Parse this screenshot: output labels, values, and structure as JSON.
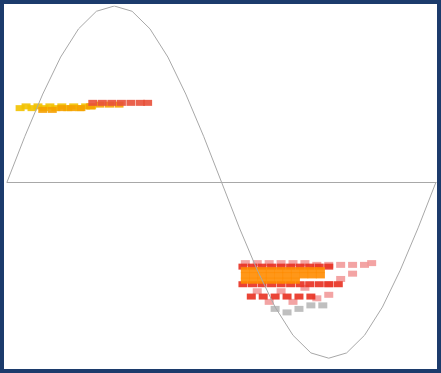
{
  "chart_data": {
    "type": "scatter",
    "xlim": [
      0,
      360
    ],
    "ylim": [
      -1.05,
      1.0
    ],
    "tick_labels": false,
    "grid": false,
    "series": [
      {
        "type": "line",
        "color": "#a8a8a8",
        "marker": "none",
        "line_style": "solid",
        "x": [
          0,
          15,
          30,
          45,
          60,
          75,
          90,
          105,
          120,
          135,
          150,
          165,
          180,
          195,
          210,
          225,
          240,
          255,
          270,
          285,
          300,
          315,
          330,
          345,
          360
        ],
        "values": [
          0,
          0.26,
          0.5,
          0.71,
          0.87,
          0.97,
          1,
          0.97,
          0.87,
          0.71,
          0.5,
          0.26,
          0,
          -0.26,
          -0.5,
          -0.71,
          -0.87,
          -0.97,
          -1,
          -0.97,
          -0.87,
          -0.71,
          -0.5,
          -0.26,
          0
        ]
      },
      {
        "type": "scatter",
        "color": "#f2c200",
        "marker": "square",
        "x": [
          11,
          16,
          21,
          26,
          31,
          36,
          41,
          46,
          51,
          56,
          61,
          66,
          71
        ],
        "values": [
          0.42,
          0.43,
          0.42,
          0.43,
          0.42,
          0.43,
          0.42,
          0.43,
          0.42,
          0.43,
          0.42,
          0.43,
          0.43
        ]
      },
      {
        "type": "scatter",
        "color": "#f5a000",
        "marker": "square",
        "x": [
          30,
          38,
          46,
          54,
          62,
          70,
          78,
          86,
          94
        ],
        "values": [
          0.41,
          0.41,
          0.42,
          0.42,
          0.42,
          0.43,
          0.44,
          0.44,
          0.44
        ]
      },
      {
        "type": "scatter",
        "color": "#e8503a",
        "marker": "square",
        "x": [
          72,
          80,
          88,
          96,
          104,
          112,
          118
        ],
        "values": [
          0.45,
          0.45,
          0.45,
          0.45,
          0.45,
          0.45,
          0.45
        ]
      },
      {
        "type": "scatter",
        "color": "#f29a9a",
        "marker": "square",
        "x": [
          200,
          210,
          220,
          230,
          240,
          250,
          260,
          270,
          280,
          290,
          300,
          306,
          210,
          230,
          250,
          270,
          280,
          290,
          220,
          240,
          260,
          270
        ],
        "values": [
          -0.46,
          -0.46,
          -0.46,
          -0.46,
          -0.46,
          -0.46,
          -0.47,
          -0.47,
          -0.47,
          -0.47,
          -0.47,
          -0.46,
          -0.62,
          -0.62,
          -0.6,
          -0.58,
          -0.55,
          -0.52,
          -0.68,
          -0.68,
          -0.66,
          -0.64
        ]
      },
      {
        "type": "scatter",
        "color": "#b8b8b8",
        "marker": "square",
        "x": [
          225,
          235,
          245,
          255,
          265
        ],
        "values": [
          -0.72,
          -0.74,
          -0.72,
          -0.7,
          -0.7
        ]
      },
      {
        "type": "scatter",
        "color": "#e83020",
        "marker": "square",
        "x": [
          198,
          206,
          214,
          222,
          230,
          238,
          246,
          254,
          262,
          270,
          198,
          206,
          214,
          222,
          230,
          238,
          246,
          254,
          262,
          270,
          278,
          205,
          215,
          225,
          235,
          245,
          255
        ],
        "values": [
          -0.48,
          -0.48,
          -0.48,
          -0.48,
          -0.48,
          -0.48,
          -0.48,
          -0.48,
          -0.48,
          -0.48,
          -0.58,
          -0.58,
          -0.58,
          -0.58,
          -0.58,
          -0.58,
          -0.58,
          -0.58,
          -0.58,
          -0.58,
          -0.58,
          -0.65,
          -0.65,
          -0.65,
          -0.65,
          -0.65,
          -0.65
        ]
      },
      {
        "type": "scatter",
        "color": "#ff8c00",
        "marker": "square",
        "x": [
          200,
          207,
          214,
          221,
          228,
          235,
          242,
          249,
          256,
          263,
          200,
          207,
          214,
          221,
          228,
          235,
          242,
          249,
          256,
          263,
          200,
          207,
          214,
          221,
          228,
          235,
          242
        ],
        "values": [
          -0.5,
          -0.5,
          -0.5,
          -0.5,
          -0.5,
          -0.5,
          -0.5,
          -0.5,
          -0.5,
          -0.5,
          -0.53,
          -0.53,
          -0.53,
          -0.53,
          -0.53,
          -0.53,
          -0.53,
          -0.53,
          -0.53,
          -0.53,
          -0.56,
          -0.56,
          -0.56,
          -0.56,
          -0.56,
          -0.56,
          -0.56
        ]
      }
    ]
  }
}
